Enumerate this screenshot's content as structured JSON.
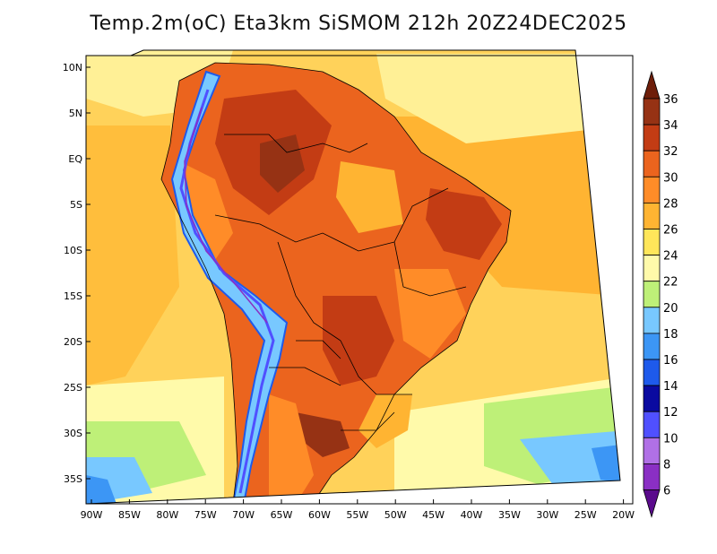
{
  "title": "Temp.2m(oC) Eta3km SiSMOM 212h 20Z24DEC2025",
  "map": {
    "lat_labels": [
      "10N",
      "5N",
      "EQ",
      "5S",
      "10S",
      "15S",
      "20S",
      "25S",
      "30S",
      "35S"
    ],
    "lon_labels": [
      "90W",
      "85W",
      "80W",
      "75W",
      "70W",
      "65W",
      "60W",
      "55W",
      "50W",
      "45W",
      "40W",
      "35W",
      "30W",
      "25W",
      "20W"
    ]
  },
  "colorbar": {
    "levels": [
      "6",
      "8",
      "10",
      "12",
      "14",
      "16",
      "18",
      "20",
      "22",
      "24",
      "26",
      "28",
      "30",
      "32",
      "34",
      "36"
    ],
    "colors": [
      "#5a0a8c",
      "#8a2fc4",
      "#b070e6",
      "#5050ff",
      "#0a0aa0",
      "#1e5aeb",
      "#3c96f5",
      "#78c8ff",
      "#bef078",
      "#fffaaa",
      "#ffe65a",
      "#ffb432",
      "#ff8c28",
      "#eb641e",
      "#c33c14",
      "#963214",
      "#6e1e0a"
    ]
  }
}
